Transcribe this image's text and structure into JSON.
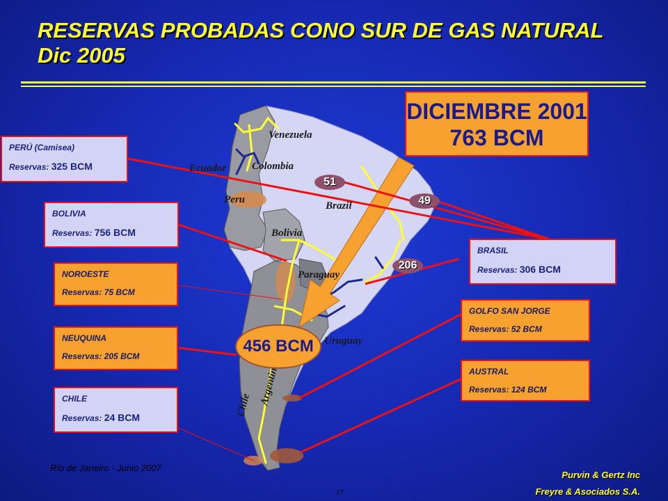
{
  "title": {
    "line1": "RESERVAS PROBADAS CONO SUR DE GAS NATURAL",
    "line2": "Dic 2005"
  },
  "highlight_2001": {
    "line1": "DICIEMBRE 2001",
    "line2": "763 BCM"
  },
  "total_center": "456 BCM",
  "badges": {
    "b51": "51",
    "b49": "49",
    "b206": "206"
  },
  "countries": {
    "venezuela": "Venezuela",
    "colombia": "Colombia",
    "ecuador": "Ecuador",
    "peru": "Peru",
    "brazil": "Brazil",
    "bolivia": "Bolivia",
    "paraguay": "Paraguay",
    "uruguay": "Uruguay",
    "chile": "Chile",
    "argentina": "Argentina"
  },
  "boxes": {
    "peru": {
      "title": "PERÚ  (Camisea)",
      "prefix": "Reservas:",
      "value": "325 BCM"
    },
    "bolivia": {
      "title": "BOLIVIA",
      "prefix": "Reservas:",
      "value": "756 BCM"
    },
    "noroeste": {
      "title": "NOROESTE",
      "reserves": "Reservas: 75 BCM"
    },
    "neuquina": {
      "title": "NEUQUINA",
      "reserves": "Reservas: 205 BCM"
    },
    "chile": {
      "title": "CHILE",
      "prefix": "Reservas:",
      "value": "24 BCM"
    },
    "brasil": {
      "title": "BRASIL",
      "prefix": "Reservas:",
      "value": "306 BCM"
    },
    "golfo": {
      "title": "GOLFO SAN JORGE",
      "reserves": "Reservas: 52 BCM"
    },
    "austral": {
      "title": "AUSTRAL",
      "reserves": "Reservas: 124 BCM"
    }
  },
  "footer": {
    "left": "Río de Janeiro - Junio 2007",
    "right1": "Purvin & Gertz Inc",
    "right2": "Freyre & Asociados S.A.",
    "page": "17"
  },
  "colors": {
    "title": "#ffff33",
    "connector": "#ee1111",
    "pipeline": "#ffff33",
    "orange_box": "#f7a130"
  }
}
